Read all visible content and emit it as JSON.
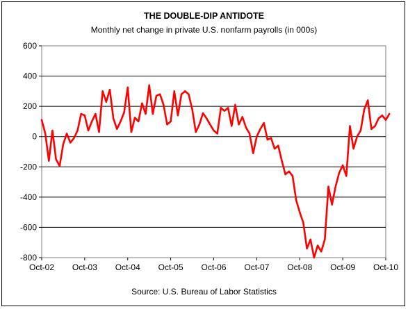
{
  "chart_data": {
    "type": "line",
    "title": "THE DOUBLE-DIP ANTIDOTE",
    "subtitle": "Monthly net change in private U.S. nonfarm payrolls (in 000s)",
    "source": "Source: U.S. Bureau of Labor Statistics",
    "xlabel": "",
    "ylabel": "",
    "ylim": [
      -800,
      600
    ],
    "yticks": [
      600,
      400,
      200,
      0,
      -200,
      -400,
      -600,
      -800
    ],
    "xlim": [
      0,
      96
    ],
    "xticks": [
      {
        "label": "Oct-02",
        "pos": 0
      },
      {
        "label": "Oct-03",
        "pos": 12
      },
      {
        "label": "Oct-04",
        "pos": 24
      },
      {
        "label": "Oct-05",
        "pos": 36
      },
      {
        "label": "Oct-06",
        "pos": 48
      },
      {
        "label": "Oct-07",
        "pos": 60
      },
      {
        "label": "Oct-08",
        "pos": 72
      },
      {
        "label": "Oct-09",
        "pos": 84
      },
      {
        "label": "Oct-10",
        "pos": 96
      }
    ],
    "grid": "horizontal",
    "legend": "none",
    "line_color": "#ff0000",
    "series": [
      {
        "values": [
          110,
          20,
          -160,
          40,
          -150,
          -195,
          -50,
          20,
          -40,
          -10,
          40,
          150,
          140,
          40,
          100,
          150,
          30,
          300,
          230,
          310,
          120,
          50,
          100,
          160,
          325,
          30,
          125,
          100,
          220,
          150,
          340,
          150,
          270,
          280,
          210,
          80,
          100,
          300,
          140,
          280,
          300,
          280,
          180,
          30,
          80,
          155,
          120,
          80,
          40,
          20,
          190,
          170,
          190,
          70,
          210,
          80,
          130,
          60,
          20,
          -110,
          0,
          50,
          90,
          -20,
          -10,
          -80,
          -60,
          -160,
          -250,
          -230,
          -260,
          -420,
          -500,
          -570,
          -740,
          -680,
          -800,
          -720,
          -760,
          -680,
          -330,
          -450,
          -330,
          -240,
          -190,
          -260,
          70,
          -80,
          0,
          40,
          180,
          240,
          50,
          70,
          120,
          140,
          110,
          150
        ]
      }
    ]
  }
}
